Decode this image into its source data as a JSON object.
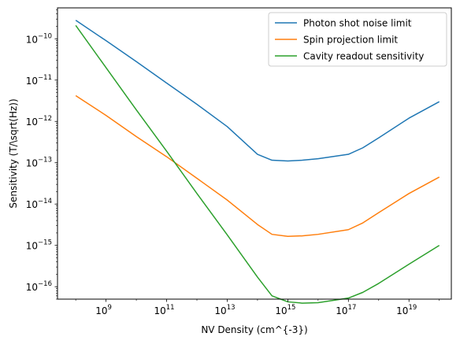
{
  "chart_data": {
    "type": "line",
    "xlabel": "NV Density (cm^{-3})",
    "ylabel": "Sensitivity (T/\\sqrt(Hz))",
    "xscale": "log",
    "yscale": "log",
    "xlim": [
      25000000.0,
      2.5e+20
    ],
    "ylim": [
      5e-17,
      5.6e-10
    ],
    "x_ticks": [
      {
        "value": 1000000000.0,
        "base": "10",
        "exp": "9"
      },
      {
        "value": 100000000000.0,
        "base": "10",
        "exp": "11"
      },
      {
        "value": 10000000000000.0,
        "base": "10",
        "exp": "13"
      },
      {
        "value": 1000000000000000.0,
        "base": "10",
        "exp": "15"
      },
      {
        "value": 1e+17,
        "base": "10",
        "exp": "17"
      },
      {
        "value": 1e+19,
        "base": "10",
        "exp": "19"
      }
    ],
    "y_ticks": [
      {
        "value": 1e-16,
        "base": "10",
        "exp": "−16"
      },
      {
        "value": 1e-15,
        "base": "10",
        "exp": "−15"
      },
      {
        "value": 1e-14,
        "base": "10",
        "exp": "−14"
      },
      {
        "value": 1e-13,
        "base": "10",
        "exp": "−13"
      },
      {
        "value": 1e-12,
        "base": "10",
        "exp": "−12"
      },
      {
        "value": 1e-11,
        "base": "10",
        "exp": "−11"
      },
      {
        "value": 1e-10,
        "base": "10",
        "exp": "−10"
      }
    ],
    "grid": false,
    "legend_position": "top-right",
    "series": [
      {
        "name": "Photon shot noise limit",
        "color": "#1f77b4",
        "points": [
          [
            100000000.0,
            2.8e-10
          ],
          [
            1000000000.0,
            9e-11
          ],
          [
            10000000000.0,
            2.8e-11
          ],
          [
            100000000000.0,
            8.5e-12
          ],
          [
            1000000000000.0,
            2.6e-12
          ],
          [
            10000000000000.0,
            7.5e-13
          ],
          [
            100000000000000.0,
            1.6e-13
          ],
          [
            300000000000000.0,
            1.15e-13
          ],
          [
            1000000000000000.0,
            1.1e-13
          ],
          [
            3000000000000000.0,
            1.15e-13
          ],
          [
            1e+16,
            1.25e-13
          ],
          [
            1e+17,
            1.6e-13
          ],
          [
            3e+17,
            2.3e-13
          ],
          [
            1e+18,
            4e-13
          ],
          [
            1e+19,
            1.2e-12
          ],
          [
            1e+20,
            3e-12
          ]
        ]
      },
      {
        "name": "Spin projection limit",
        "color": "#ff7f0e",
        "points": [
          [
            100000000.0,
            4.2e-12
          ],
          [
            1000000000.0,
            1.4e-12
          ],
          [
            10000000000.0,
            4.3e-13
          ],
          [
            100000000000.0,
            1.4e-13
          ],
          [
            1000000000000.0,
            4.2e-14
          ],
          [
            10000000000000.0,
            1.25e-14
          ],
          [
            100000000000000.0,
            3.2e-15
          ],
          [
            300000000000000.0,
            1.85e-15
          ],
          [
            1000000000000000.0,
            1.65e-15
          ],
          [
            3000000000000000.0,
            1.7e-15
          ],
          [
            1e+16,
            1.85e-15
          ],
          [
            1e+17,
            2.4e-15
          ],
          [
            3e+17,
            3.5e-15
          ],
          [
            1e+18,
            6.2e-15
          ],
          [
            1e+19,
            1.8e-14
          ],
          [
            1e+20,
            4.5e-14
          ]
        ]
      },
      {
        "name": "Cavity readout sensitivity",
        "color": "#2ca02c",
        "points": [
          [
            100000000.0,
            2.1e-10
          ],
          [
            1000000000.0,
            2e-11
          ],
          [
            10000000000.0,
            1.9e-12
          ],
          [
            100000000000.0,
            1.9e-13
          ],
          [
            1000000000000.0,
            1.8e-14
          ],
          [
            10000000000000.0,
            1.8e-15
          ],
          [
            100000000000000.0,
            1.7e-16
          ],
          [
            300000000000000.0,
            6e-17
          ],
          [
            1000000000000000.0,
            4.3e-17
          ],
          [
            3000000000000000.0,
            4e-17
          ],
          [
            1e+16,
            4.1e-17
          ],
          [
            1e+17,
            5.3e-17
          ],
          [
            3e+17,
            7.3e-17
          ],
          [
            1e+18,
            1.2e-16
          ],
          [
            1e+19,
            3.5e-16
          ],
          [
            1e+20,
            1e-15
          ]
        ]
      }
    ]
  }
}
